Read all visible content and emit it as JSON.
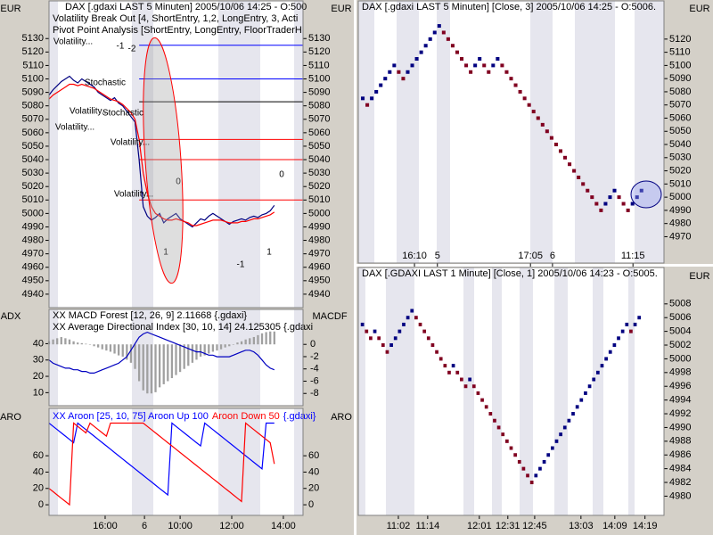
{
  "chart_data": [
    {
      "type": "line",
      "title": [
        "DAX [.gdaxi LAST 5 Minuten] 2005/10/06 14:25 - O:500",
        "Volatility Break Out [4, ShortEntry, 1,2, LongEntry, 3, Acti",
        "Pivot Point Analysis [ShortEntry, LongEntry, FloorTraderH"
      ],
      "ylabel": "EUR",
      "xlim": [
        0,
        62
      ],
      "ylim": [
        4930,
        5158
      ],
      "yticks": [
        4940,
        4950,
        4960,
        4970,
        4980,
        4990,
        5000,
        5010,
        5020,
        5030,
        5040,
        5050,
        5060,
        5070,
        5080,
        5090,
        5100,
        5110,
        5120,
        5130
      ],
      "levels": [
        {
          "color": "#0000ff",
          "value": 5125
        },
        {
          "color": "#0000ff",
          "value": 5100
        },
        {
          "color": "#000000",
          "value": 5083
        },
        {
          "color": "#ff0000",
          "value": 5055
        },
        {
          "color": "#ff0000",
          "value": 5040
        },
        {
          "color": "#ff0000",
          "value": 5010
        }
      ],
      "annotations": [
        "Volatility...",
        "Stochastic",
        "Volatility...",
        "Volatility...",
        "Stochastic",
        "Volatility...",
        "Volatility...",
        "-1",
        "-2",
        "0",
        "1",
        "-1",
        "0",
        "1"
      ],
      "series": [
        {
          "type": "line",
          "color": "#000080",
          "values": [
            5088,
            5092,
            5095,
            5098,
            5100,
            5102,
            5099,
            5097,
            5100,
            5098,
            5096,
            5094,
            5090,
            5088,
            5086,
            5084,
            5086,
            5082,
            5080,
            5076,
            5072,
            5068,
            5040,
            5005,
            4998,
            4995,
            4997,
            5000,
            4993,
            4996,
            4998,
            5000,
            4996,
            4994,
            4992,
            4990,
            4993,
            4996,
            4995,
            4998,
            5000,
            4998,
            4996,
            4994,
            4992,
            4994,
            4995,
            4996,
            4995,
            4997,
            4998,
            4997,
            4999,
            5000,
            5002,
            5006
          ]
        },
        {
          "type": "line",
          "color": "#ff0000",
          "values": [
            5085,
            5088,
            5090,
            5092,
            5094,
            5096,
            5096,
            5095,
            5096,
            5095,
            5094,
            5093,
            5091,
            5089,
            5087,
            5085,
            5084,
            5083,
            5081,
            5078,
            5075,
            5070,
            5055,
            5030,
            5015,
            5005,
            5000,
            4998,
            4996,
            4995,
            4995,
            4996,
            4995,
            4994,
            4993,
            4991,
            4991,
            4992,
            4993,
            4994,
            4995,
            4995,
            4995,
            4994,
            4993,
            4993,
            4993,
            4994,
            4994,
            4995,
            4996,
            4996,
            4997,
            4998,
            4999,
            5001
          ]
        }
      ]
    },
    {
      "type": "line",
      "title": [
        "XX MACD Forest [12, 26, 9] 2.11668 {.gdaxi}",
        "XX Average Directional Index [30, 10, 14] 24.125305 {.gdaxi"
      ],
      "ylabel": "ADX",
      "y2label": "MACDF",
      "xlim": [
        0,
        62
      ],
      "ylim": [
        2,
        61
      ],
      "yticks": [
        10,
        20,
        30,
        40
      ],
      "y2lim": [
        -10,
        5.7
      ],
      "y2ticks": [
        -8,
        -6,
        -4,
        -2,
        0
      ],
      "series": [
        {
          "type": "bar",
          "axis": "y2",
          "color": "#a0a0a0",
          "values": [
            0.5,
            0.8,
            1,
            1.2,
            1,
            0.8,
            0.5,
            0.3,
            0.2,
            0.1,
            0,
            -0.3,
            -0.5,
            -0.8,
            -1,
            -1.2,
            -1.5,
            -1.8,
            -2,
            -2.5,
            -3,
            -4,
            -6,
            -7.5,
            -8,
            -8,
            -7.8,
            -7,
            -6.5,
            -6,
            -5.5,
            -5,
            -4.5,
            -4,
            -3.5,
            -3,
            -2.5,
            -2,
            -1.8,
            -1.5,
            -1.2,
            -1,
            -0.8,
            -0.5,
            -0.3,
            0,
            0.3,
            0.5,
            0.8,
            1,
            1.2,
            1.5,
            1.8,
            2,
            2.1,
            2.1
          ]
        },
        {
          "type": "line",
          "color": "#0000c0",
          "values": [
            30,
            28,
            27,
            26,
            25,
            25,
            24,
            24,
            23,
            23,
            22,
            22,
            23,
            24,
            25,
            26,
            27,
            28,
            30,
            32,
            36,
            40,
            44,
            46,
            47,
            46,
            45,
            44,
            43,
            42,
            41,
            40,
            39,
            38,
            37,
            36,
            35,
            35,
            34,
            33,
            33,
            32,
            32,
            32,
            32,
            33,
            34,
            35,
            36,
            36,
            35,
            33,
            30,
            27,
            25,
            24
          ]
        }
      ]
    },
    {
      "type": "line",
      "title": [
        {
          "text": "XX Aroon [25, 10, 75] Aroon Up 100",
          "color": "#0000ff"
        },
        {
          "text": "Aroon Down 50",
          "color": "#ff0000"
        },
        {
          "text": "{.gdaxi}",
          "color": "#0000ff"
        }
      ],
      "ylabel": "ARO",
      "xlim": [
        0,
        62
      ],
      "ylim": [
        -13,
        118
      ],
      "yticks": [
        0,
        20,
        40,
        60
      ],
      "xticks": [
        {
          "value": 13.7,
          "label": "16:00"
        },
        {
          "value": 23.3,
          "label": "6"
        },
        {
          "value": 32,
          "label": "10:00"
        },
        {
          "value": 44.6,
          "label": "12:00"
        },
        {
          "value": 57.2,
          "label": "14:00"
        }
      ],
      "series": [
        {
          "type": "line",
          "color": "#0000ff",
          "values": [
            100,
            96,
            92,
            88,
            84,
            80,
            76,
            100,
            96,
            92,
            88,
            84,
            80,
            76,
            72,
            68,
            64,
            60,
            56,
            52,
            48,
            44,
            40,
            36,
            32,
            28,
            24,
            20,
            16,
            12,
            100,
            96,
            92,
            88,
            84,
            80,
            76,
            72,
            100,
            96,
            92,
            88,
            84,
            80,
            76,
            72,
            68,
            64,
            60,
            56,
            52,
            48,
            44,
            100,
            100,
            100
          ]
        },
        {
          "type": "line",
          "color": "#ff0000",
          "values": [
            20,
            16,
            12,
            8,
            4,
            0,
            100,
            96,
            92,
            88,
            100,
            96,
            92,
            88,
            84,
            100,
            100,
            100,
            100,
            100,
            100,
            100,
            100,
            100,
            96,
            92,
            88,
            84,
            80,
            76,
            72,
            68,
            64,
            60,
            56,
            52,
            48,
            44,
            40,
            36,
            32,
            28,
            24,
            20,
            16,
            12,
            8,
            4,
            100,
            96,
            92,
            88,
            84,
            80,
            76,
            50
          ]
        }
      ]
    },
    {
      "type": "renko",
      "title": [
        "DAX [.gdaxi LAST 5 Minuten] [Close, 3] 2005/10/06 14:25 - O:5006."
      ],
      "ylabel": "EUR",
      "xlim": [
        -1,
        67
      ],
      "ylim": [
        4950,
        5149
      ],
      "yticks": [
        4970,
        4980,
        4990,
        5000,
        5010,
        5020,
        5030,
        5040,
        5050,
        5060,
        5070,
        5080,
        5090,
        5100,
        5110,
        5120
      ],
      "xticks": [
        {
          "value": 11.5,
          "label": "16:10"
        },
        {
          "value": 16.6,
          "label": "5"
        },
        {
          "value": 37.3,
          "label": "17:05"
        },
        {
          "value": 42.2,
          "label": "6"
        },
        {
          "value": 60.1,
          "label": "11:15"
        }
      ],
      "series": [
        {
          "type": "line",
          "color": "#000080",
          "values": [
            5075,
            5070,
            5075,
            5080,
            5085,
            5090,
            5095,
            5100,
            5095,
            5090,
            5095,
            5100,
            5105,
            5110,
            5115,
            5120,
            5125,
            5130,
            5125,
            5120,
            5115,
            5110,
            5105,
            5100,
            5095,
            5100,
            5105,
            5100,
            5095,
            5100,
            5105,
            5100,
            5095,
            5090,
            5085,
            5080,
            5075,
            5070,
            5065,
            5060,
            5055,
            5050,
            5045,
            5040,
            5035,
            5030,
            5025,
            5020,
            5015,
            5010,
            5005,
            5000,
            4995,
            4990,
            4995,
            5000,
            5005,
            5000,
            4995,
            4990,
            4995,
            5000,
            5005
          ]
        }
      ]
    },
    {
      "type": "renko",
      "title": [
        "DAX [.GDAXI LAST 1 Minute] [Close, 1] 2005/10/06 14:23 - O:5005."
      ],
      "ylabel": "EUR",
      "xlim": [
        -1,
        73
      ],
      "ylim": [
        4977.2,
        5013.3
      ],
      "yticks": [
        4980,
        4982,
        4984,
        4986,
        4988,
        4990,
        4992,
        4994,
        4996,
        4998,
        5000,
        5002,
        5004,
        5006,
        5008
      ],
      "xticks": [
        {
          "value": 8.7,
          "label": "11:02"
        },
        {
          "value": 15.8,
          "label": "11:14"
        },
        {
          "value": 28.3,
          "label": "12:01"
        },
        {
          "value": 35.2,
          "label": "12:31"
        },
        {
          "value": 41.7,
          "label": "12:45"
        },
        {
          "value": 52.9,
          "label": "13:03"
        },
        {
          "value": 61.1,
          "label": "14:09"
        },
        {
          "value": 68.4,
          "label": "14:19"
        }
      ],
      "series": [
        {
          "type": "line",
          "color": "#000080",
          "values": [
            5005,
            5004,
            5003,
            5004,
            5003,
            5002,
            5001,
            5002,
            5003,
            5004,
            5005,
            5006,
            5007,
            5006,
            5005,
            5004,
            5003,
            5002,
            5001,
            5000,
            4999,
            4998,
            4999,
            4998,
            4997,
            4996,
            4997,
            4996,
            4995,
            4994,
            4993,
            4992,
            4991,
            4990,
            4989,
            4988,
            4987,
            4986,
            4985,
            4984,
            4983,
            4982,
            4983,
            4984,
            4985,
            4986,
            4987,
            4988,
            4989,
            4990,
            4991,
            4992,
            4993,
            4994,
            4995,
            4996,
            4997,
            4998,
            4999,
            5000,
            5001,
            5002,
            5003,
            5004,
            5005,
            5004,
            5005,
            5006
          ]
        }
      ]
    }
  ]
}
